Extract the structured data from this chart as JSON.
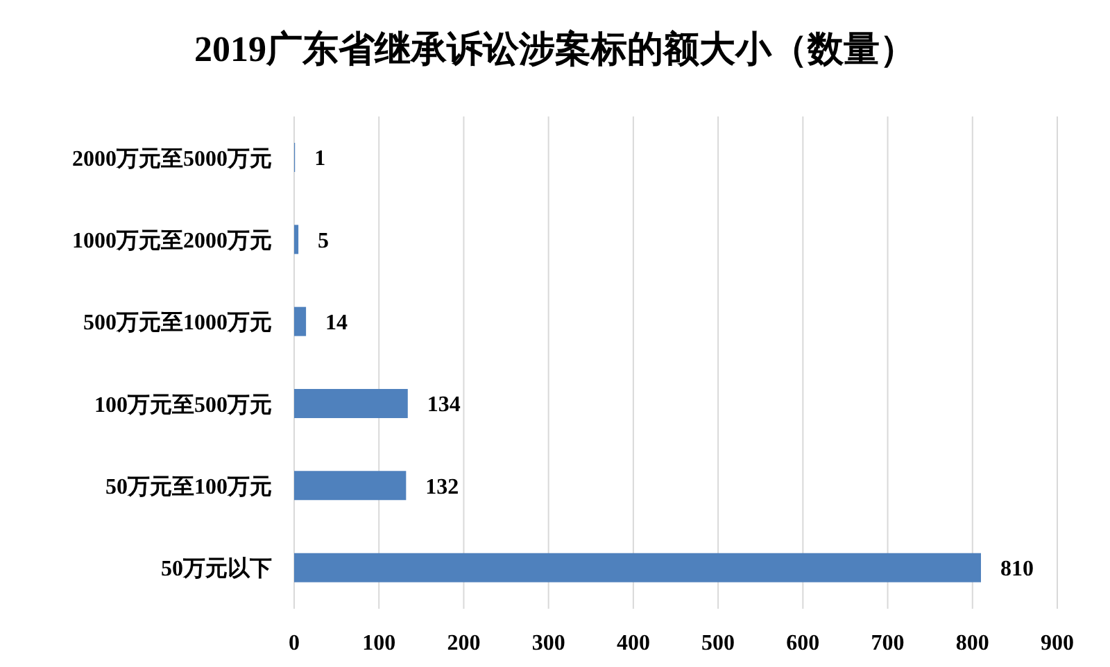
{
  "chart_data": {
    "type": "bar",
    "orientation": "horizontal",
    "title": "2019广东省继承诉讼涉案标的额大小（数量）",
    "categories": [
      "2000万元至5000万元",
      "1000万元至2000万元",
      "500万元至1000万元",
      "100万元至500万元",
      "50万元至100万元",
      "50万元以下"
    ],
    "values": [
      1,
      5,
      14,
      134,
      132,
      810
    ],
    "color": "#4f81bd",
    "xlim": [
      0,
      900
    ],
    "xticks": [
      0,
      100,
      200,
      300,
      400,
      500,
      600,
      700,
      800,
      900
    ],
    "grid": "x",
    "data_labels": true
  }
}
